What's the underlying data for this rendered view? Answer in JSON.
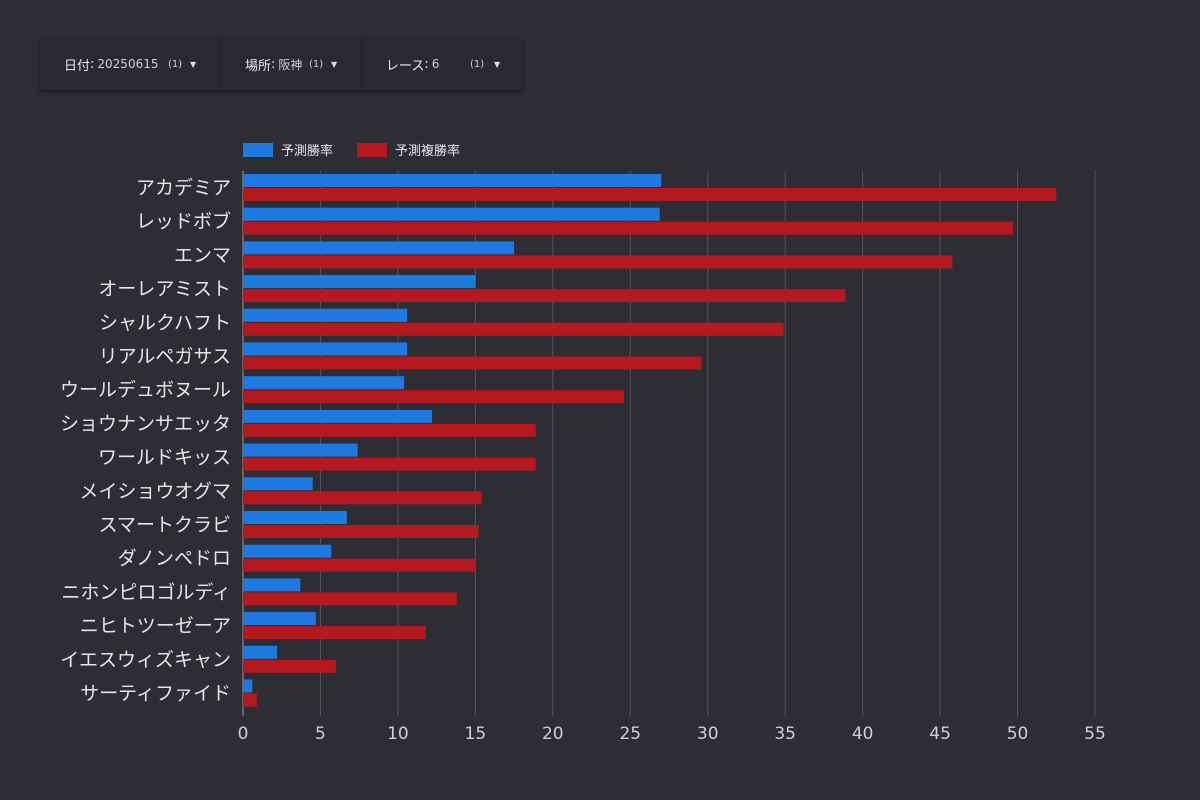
{
  "filters": {
    "date": {
      "label": "日付",
      "colon": ":",
      "value": "20250615",
      "count": "(1)"
    },
    "venue": {
      "label": "場所",
      "colon": ":",
      "value": "阪神",
      "count": "(1)"
    },
    "race": {
      "label": "レース",
      "colon": ":",
      "value": "6",
      "count": "(1)"
    },
    "caret": "▼"
  },
  "colors": {
    "win": "#1e7ae0",
    "place": "#b3191e",
    "grid": "#55545a",
    "axis": "#9a9aa0"
  },
  "chart_data": {
    "type": "bar",
    "orientation": "horizontal",
    "categories": [
      "アカデミア",
      "レッドボブ",
      "エンマ",
      "オーレアミスト",
      "シャルクハフト",
      "リアルペガサス",
      "ウールデュボヌール",
      "ショウナンサエッタ",
      "ワールドキッス",
      "メイショウオグマ",
      "スマートクラビ",
      "ダノンペドロ",
      "ニホンピロゴルディ",
      "ニヒトツーゼーア",
      "イエスウィズキャン",
      "サーティファイド"
    ],
    "series": [
      {
        "name": "予測勝率",
        "color": "#1e7ae0",
        "values": [
          27.0,
          26.9,
          17.5,
          15.0,
          10.6,
          10.6,
          10.4,
          12.2,
          7.4,
          4.5,
          6.7,
          5.7,
          3.7,
          4.7,
          2.2,
          0.6
        ]
      },
      {
        "name": "予測複勝率",
        "color": "#b3191e",
        "values": [
          52.5,
          49.7,
          45.8,
          38.9,
          34.9,
          29.6,
          24.6,
          18.9,
          18.9,
          15.4,
          15.2,
          15.0,
          13.8,
          11.8,
          6.0,
          0.9
        ]
      }
    ],
    "xlim": [
      0,
      55
    ],
    "xticks": [
      0,
      5,
      10,
      15,
      20,
      25,
      30,
      35,
      40,
      45,
      50,
      55
    ],
    "grid": true,
    "legend": "top-left"
  }
}
